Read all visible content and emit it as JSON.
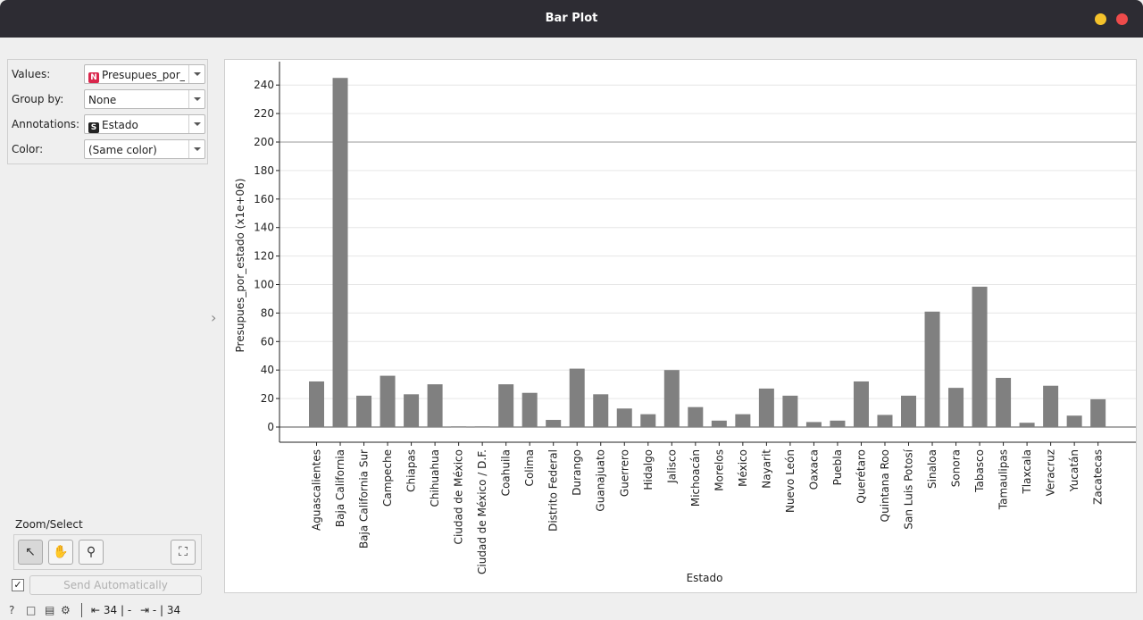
{
  "window": {
    "title": "Bar Plot"
  },
  "controls": {
    "values_label": "Values:",
    "values_value": "Presupues_por_e",
    "values_badge": "N",
    "group_label": "Group by:",
    "group_value": "None",
    "annotations_label": "Annotations:",
    "annotations_value": "Estado",
    "annotations_badge": "S",
    "color_label": "Color:",
    "color_value": "(Same color)"
  },
  "zoom": {
    "label": "Zoom/Select",
    "icons": [
      "pointer-icon",
      "pan-hand-icon",
      "magnifier-icon",
      "fit-view-icon"
    ]
  },
  "send": {
    "checked": true,
    "label": "Send Automatically"
  },
  "status": {
    "input_count": "34 | -",
    "output_count": "- | 34"
  },
  "colors": {
    "bar": "#808080",
    "grid": "#e6e6e6",
    "titlebar": "#2d2c33"
  },
  "chart_data": {
    "type": "bar",
    "xlabel": "Estado",
    "ylabel": "Presupues_por_estado (x1e+06)",
    "ylim": [
      0,
      250
    ],
    "yticks": [
      0,
      20,
      40,
      60,
      80,
      100,
      120,
      140,
      160,
      180,
      200,
      220,
      240
    ],
    "grid": true,
    "categories": [
      "Aguascalientes",
      "Baja California",
      "Baja California Sur",
      "Campeche",
      "Chiapas",
      "Chihuahua",
      "Ciudad de México",
      "Ciudad de México / D.F.",
      "Coahuila",
      "Colima",
      "Distrito Federal",
      "Durango",
      "Guanajuato",
      "Guerrero",
      "Hidalgo",
      "Jalisco",
      "Michoacán",
      "Morelos",
      "México",
      "Nayarit",
      "Nuevo León",
      "Oaxaca",
      "Puebla",
      "Querétaro",
      "Quintana Roo",
      "San Luis Potosí",
      "Sinaloa",
      "Sonora",
      "Tabasco",
      "Tamaulipas",
      "Tlaxcala",
      "Veracruz",
      "Yucatán",
      "Zacatecas"
    ],
    "values": [
      32,
      245,
      22,
      36,
      23,
      30,
      0.5,
      0.5,
      30,
      24,
      5,
      41,
      23,
      13,
      9,
      40,
      14,
      4.5,
      9,
      27,
      22,
      3.5,
      4.5,
      32,
      8.5,
      22,
      81,
      27.5,
      98.5,
      34.5,
      3,
      29,
      8,
      19.5
    ]
  }
}
